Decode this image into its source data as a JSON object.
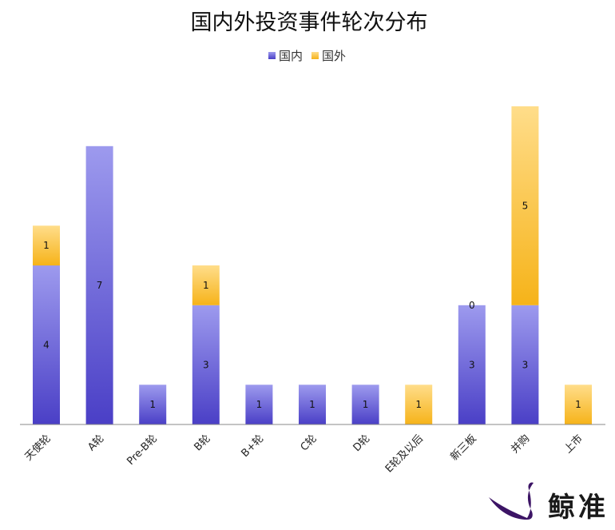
{
  "chart_data": {
    "type": "bar",
    "stacked": true,
    "title": "国内外投资事件轮次分布",
    "categories": [
      "天使轮",
      "A轮",
      "Pre-B轮",
      "B轮",
      "B+轮",
      "C轮",
      "D轮",
      "E轮及以后",
      "新三板",
      "并购",
      "上市"
    ],
    "series": [
      {
        "name": "国内",
        "values": [
          4,
          7,
          1,
          3,
          1,
          1,
          1,
          0,
          3,
          3,
          0
        ],
        "labels": [
          "4",
          "7",
          "1",
          "3",
          "1",
          "1",
          "1",
          "",
          "3",
          "3",
          ""
        ],
        "color_top": "#9d9aee",
        "color_bottom": "#4a3fc6"
      },
      {
        "name": "国外",
        "values": [
          1,
          0,
          0,
          1,
          0,
          0,
          0,
          1,
          0,
          5,
          1
        ],
        "labels": [
          "1",
          "",
          "",
          "1",
          "",
          "",
          "",
          "1",
          "0",
          "5",
          "1"
        ],
        "color_top": "#ffdd8a",
        "color_bottom": "#f6b319"
      }
    ],
    "ylim": [
      0,
      8
    ],
    "xlabel": "",
    "ylabel": "",
    "grid": false,
    "legend_position": "top-center"
  },
  "watermark": {
    "text": "鲸准",
    "logo_icon": "whale-tail-icon",
    "logo_color": "#3c1465"
  }
}
